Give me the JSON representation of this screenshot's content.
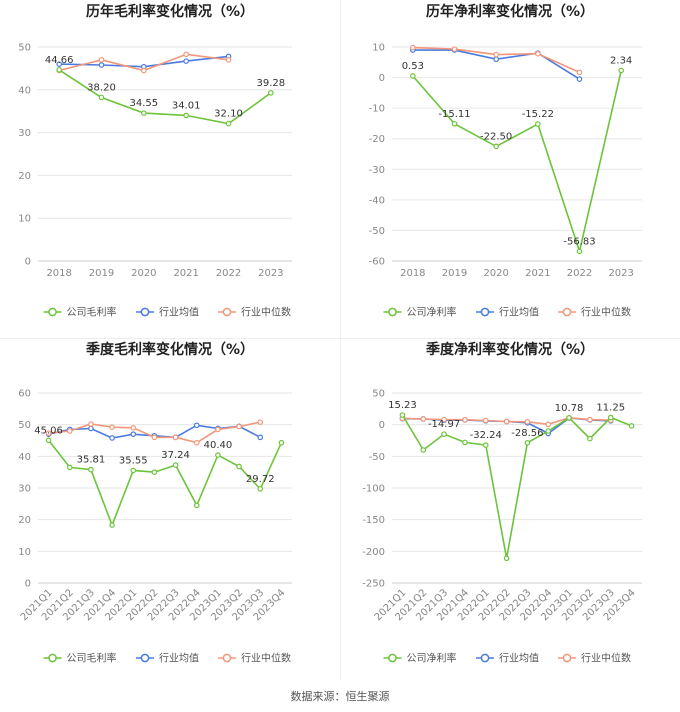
{
  "colors": {
    "company": "#6cc43b",
    "industry_avg": "#4a7be0",
    "industry_median": "#f2977b",
    "grid": "#e6e6e6",
    "axis": "#cccccc"
  },
  "source": "数据来源：恒生聚源",
  "chart_data": [
    {
      "type": "line",
      "title": "历年毛利率变化情况（%）",
      "categories": [
        "2018",
        "2019",
        "2020",
        "2021",
        "2022",
        "2023"
      ],
      "ylim": [
        0,
        50
      ],
      "yticks": [
        0,
        10,
        20,
        30,
        40,
        50
      ],
      "xlabel_rotated": false,
      "grid": true,
      "legend_position": "bottom",
      "series": [
        {
          "name": "公司毛利率",
          "role": "company",
          "values": [
            44.66,
            38.2,
            34.55,
            34.01,
            32.1,
            39.28
          ],
          "labels": [
            "44.66",
            "38.20",
            "34.55",
            "34.01",
            "32.10",
            "39.28"
          ]
        },
        {
          "name": "行业均值",
          "role": "industry_avg",
          "values": [
            46.0,
            45.8,
            45.4,
            46.7,
            47.8,
            null
          ]
        },
        {
          "name": "行业中位数",
          "role": "industry_median",
          "values": [
            44.5,
            47.0,
            44.5,
            48.3,
            47.0,
            null
          ]
        }
      ]
    },
    {
      "type": "line",
      "title": "历年净利率变化情况（%）",
      "categories": [
        "2018",
        "2019",
        "2020",
        "2021",
        "2022",
        "2023"
      ],
      "ylim": [
        -60,
        10
      ],
      "yticks": [
        -60,
        -50,
        -40,
        -30,
        -20,
        -10,
        0,
        10
      ],
      "xlabel_rotated": false,
      "grid": true,
      "legend_position": "bottom",
      "series": [
        {
          "name": "公司净利率",
          "role": "company",
          "values": [
            0.53,
            -15.11,
            -22.5,
            -15.22,
            -56.83,
            2.34
          ],
          "labels": [
            "0.53",
            "-15.11",
            "-22.50",
            "-15.22",
            "-56.83",
            "2.34"
          ]
        },
        {
          "name": "行业均值",
          "role": "industry_avg",
          "values": [
            9.0,
            9.0,
            6.0,
            8.0,
            -0.5,
            null
          ]
        },
        {
          "name": "行业中位数",
          "role": "industry_median",
          "values": [
            9.8,
            9.3,
            7.5,
            7.8,
            1.7,
            null
          ]
        }
      ]
    },
    {
      "type": "line",
      "title": "季度毛利率变化情况（%）",
      "categories": [
        "2021Q1",
        "2021Q2",
        "2021Q3",
        "2021Q4",
        "2022Q1",
        "2022Q2",
        "2022Q3",
        "2022Q4",
        "2023Q1",
        "2023Q2",
        "2023Q3",
        "2023Q4"
      ],
      "ylim": [
        0,
        60
      ],
      "yticks": [
        0,
        10,
        20,
        30,
        40,
        50,
        60
      ],
      "xlabel_rotated": true,
      "grid": true,
      "legend_position": "bottom",
      "series": [
        {
          "name": "公司毛利率",
          "role": "company",
          "values": [
            45.06,
            36.5,
            35.81,
            18.3,
            35.55,
            35.0,
            37.24,
            24.5,
            40.4,
            36.8,
            29.72,
            44.3
          ],
          "labels": [
            "45.06",
            "",
            "35.81",
            "",
            "35.55",
            "",
            "37.24",
            "",
            "40.40",
            "",
            "29.72",
            ""
          ]
        },
        {
          "name": "行业均值",
          "role": "industry_avg",
          "values": [
            47.0,
            48.5,
            48.8,
            45.8,
            47.0,
            46.5,
            46.0,
            49.8,
            48.8,
            49.5,
            46.0,
            null
          ]
        },
        {
          "name": "行业中位数",
          "role": "industry_median",
          "values": [
            47.3,
            48.0,
            50.2,
            49.2,
            49.0,
            46.0,
            46.0,
            44.3,
            48.5,
            49.4,
            50.8,
            null
          ]
        }
      ]
    },
    {
      "type": "line",
      "title": "季度净利率变化情况（%）",
      "categories": [
        "2021Q1",
        "2021Q2",
        "2021Q3",
        "2021Q4",
        "2022Q1",
        "2022Q2",
        "2022Q3",
        "2022Q4",
        "2023Q1",
        "2023Q2",
        "2023Q3",
        "2023Q4"
      ],
      "ylim": [
        -250,
        50
      ],
      "yticks": [
        -250,
        -200,
        -150,
        -100,
        -50,
        0,
        50
      ],
      "xlabel_rotated": true,
      "grid": true,
      "legend_position": "bottom",
      "series": [
        {
          "name": "公司净利率",
          "role": "company",
          "values": [
            15.23,
            -40.0,
            -14.97,
            -28.0,
            -32.24,
            -211.0,
            -28.56,
            -10.0,
            10.78,
            -22.0,
            11.25,
            -2.0
          ],
          "labels": [
            "15.23",
            "",
            "-14.97",
            "",
            "-32.24",
            "",
            "-28.56",
            "",
            "10.78",
            "",
            "11.25",
            ""
          ]
        },
        {
          "name": "行业均值",
          "role": "industry_avg",
          "values": [
            9.5,
            9.0,
            7.0,
            7.5,
            6.0,
            5.0,
            3.0,
            -14.0,
            10.5,
            7.5,
            6.0,
            null
          ]
        },
        {
          "name": "行业中位数",
          "role": "industry_median",
          "values": [
            10.0,
            9.0,
            8.0,
            7.8,
            6.5,
            5.0,
            4.5,
            0.5,
            10.8,
            8.0,
            7.0,
            null
          ]
        }
      ]
    }
  ]
}
